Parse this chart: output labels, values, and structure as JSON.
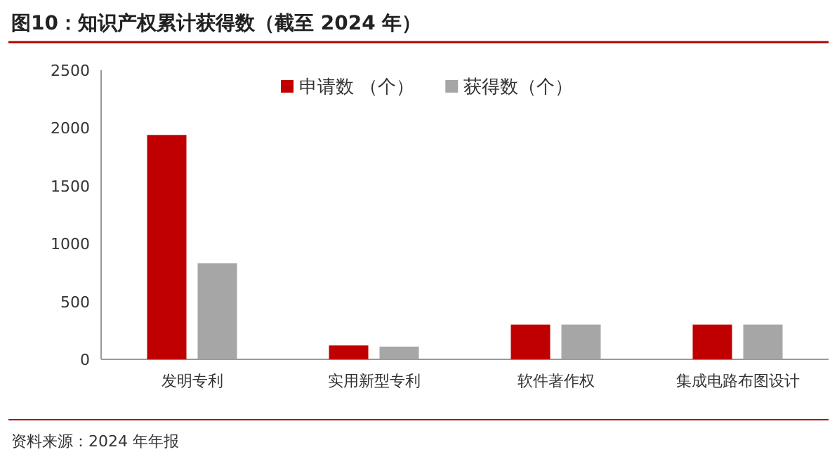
{
  "chart_data": {
    "type": "bar",
    "title": "图10：知识产权累计获得数（截至 2024 年）",
    "categories": [
      "发明专利",
      "实用新型专利",
      "软件著作权",
      "集成电路布图设计"
    ],
    "series": [
      {
        "name": "申请数 （个）",
        "color": "#c00000",
        "values": [
          1940,
          120,
          300,
          300
        ]
      },
      {
        "name": "获得数（个）",
        "color": "#a6a6a6",
        "values": [
          830,
          110,
          300,
          300
        ]
      }
    ],
    "ylim": [
      0,
      2500
    ],
    "yticks": [
      0,
      500,
      1000,
      1500,
      2000,
      2500
    ],
    "legend": "top",
    "annotations": [
      "资料来源：2024 年年报"
    ]
  }
}
